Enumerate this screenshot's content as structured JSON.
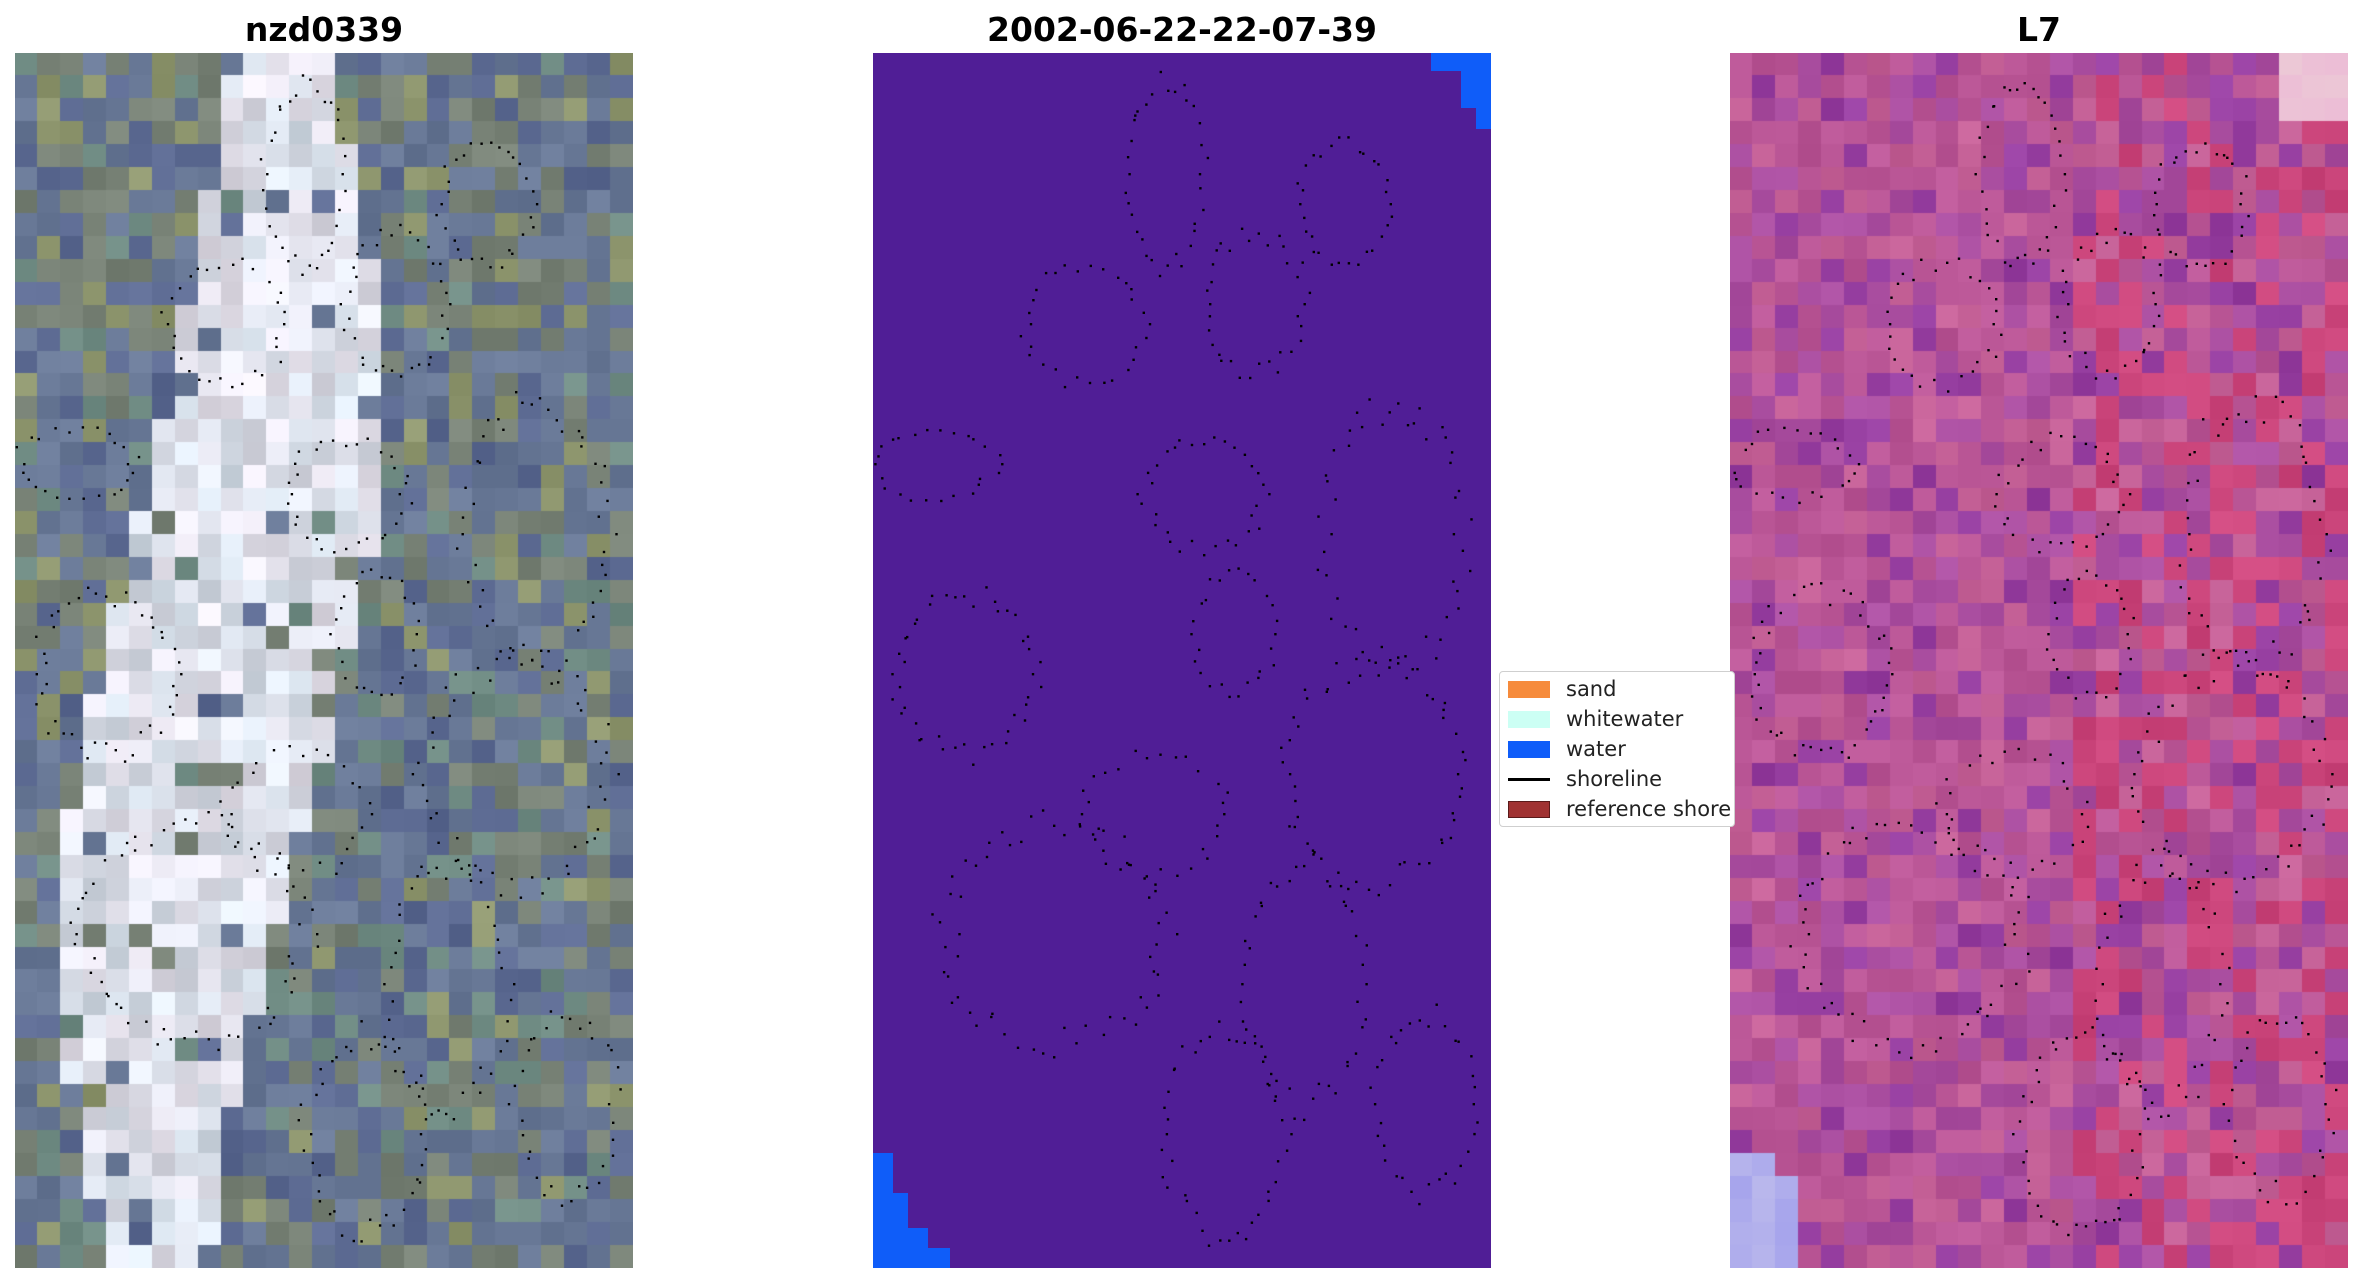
{
  "panels": [
    {
      "title": "nzd0339",
      "kind": "rgb-image"
    },
    {
      "title": "2002-06-22-22-07-39",
      "kind": "classified-image"
    },
    {
      "title": "L7",
      "kind": "index-image"
    }
  ],
  "legend": {
    "items": [
      {
        "label": "sand",
        "color": "#f68b3c",
        "type": "patch"
      },
      {
        "label": "whitewater",
        "color": "#ccfff4",
        "type": "patch"
      },
      {
        "label": "water",
        "color": "#0f5df9",
        "type": "patch"
      },
      {
        "label": "shoreline",
        "color": "#000000",
        "type": "line"
      },
      {
        "label": "reference shore",
        "color": "#a03232",
        "type": "patch"
      }
    ]
  },
  "colors": {
    "classified_background": "#501e96",
    "water": "#0f5df9",
    "dots": "#000000"
  }
}
